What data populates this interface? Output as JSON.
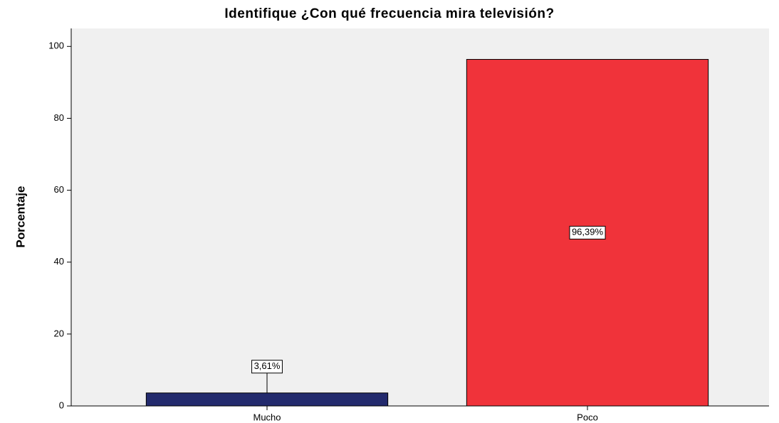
{
  "chart_data": {
    "type": "bar",
    "title": "Identifique ¿Con qué frecuencia mira televisión?",
    "y_label": "Porcentaje",
    "categories": [
      "Mucho",
      "Poco"
    ],
    "values": [
      3.61,
      96.39
    ],
    "value_labels": [
      "3,61%",
      "96,39%"
    ],
    "colors": [
      "#232a6d",
      "#f0333a"
    ],
    "ylim": [
      0,
      105
    ],
    "yticks": [
      0,
      20,
      40,
      60,
      80,
      100
    ]
  }
}
